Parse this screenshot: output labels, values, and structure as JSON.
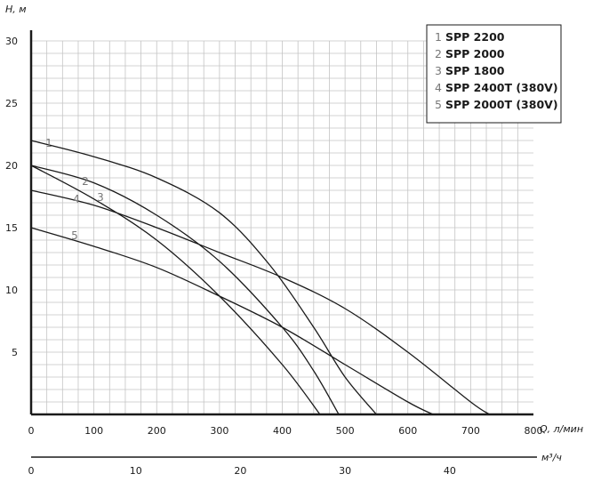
{
  "chart_data": {
    "type": "line",
    "xlabel": "Q, л/мин",
    "ylabel": "H, м",
    "x2label": "м³/ч",
    "xlim": [
      0,
      800
    ],
    "ylim": [
      0,
      30
    ],
    "x2lim": [
      0,
      48
    ],
    "x_ticks": [
      "0",
      "100",
      "200",
      "300",
      "400",
      "500",
      "600",
      "700",
      "800"
    ],
    "y_ticks": [
      "5",
      "10",
      "15",
      "20",
      "25",
      "30"
    ],
    "x2_ticks": [
      "0",
      "10",
      "20",
      "30",
      "40"
    ],
    "grid": true,
    "legend_position": "top-right",
    "series": [
      {
        "name": "SPP 2200",
        "label": "1",
        "color": "#1a1a1a",
        "points": [
          [
            0,
            22
          ],
          [
            100,
            20.7
          ],
          [
            200,
            19
          ],
          [
            300,
            16.2
          ],
          [
            380,
            12
          ],
          [
            450,
            7
          ],
          [
            500,
            3
          ],
          [
            550,
            0
          ]
        ]
      },
      {
        "name": "SPP 2000",
        "label": "2",
        "color": "#1a1a1a",
        "points": [
          [
            0,
            20
          ],
          [
            100,
            18.6
          ],
          [
            200,
            16
          ],
          [
            300,
            12.3
          ],
          [
            400,
            7
          ],
          [
            450,
            3.5
          ],
          [
            490,
            0
          ]
        ]
      },
      {
        "name": "SPP 1800",
        "label": "3",
        "color": "#1a1a1a",
        "points": [
          [
            0,
            20
          ],
          [
            100,
            17.3
          ],
          [
            200,
            14
          ],
          [
            300,
            9.5
          ],
          [
            400,
            4
          ],
          [
            460,
            0
          ]
        ]
      },
      {
        "name": "SPP 2400T (380V)",
        "label": "4",
        "color": "#1a1a1a",
        "points": [
          [
            0,
            18
          ],
          [
            100,
            16.8
          ],
          [
            200,
            15
          ],
          [
            300,
            13
          ],
          [
            400,
            11
          ],
          [
            500,
            8.5
          ],
          [
            600,
            5
          ],
          [
            700,
            1
          ],
          [
            730,
            0
          ]
        ]
      },
      {
        "name": "SPP 2000T (380V)",
        "label": "5",
        "color": "#1a1a1a",
        "points": [
          [
            0,
            15
          ],
          [
            100,
            13.5
          ],
          [
            200,
            11.8
          ],
          [
            300,
            9.5
          ],
          [
            400,
            7
          ],
          [
            500,
            4
          ],
          [
            600,
            1
          ],
          [
            640,
            0
          ]
        ]
      }
    ]
  }
}
